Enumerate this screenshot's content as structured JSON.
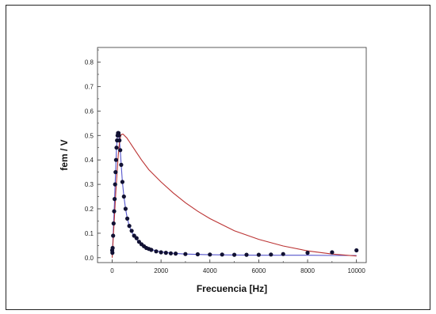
{
  "chart_data": {
    "type": "scatter",
    "title": "",
    "xlabel": "Frecuencia [Hz]",
    "ylabel": "fem / V",
    "xlim": [
      -600,
      10400
    ],
    "ylim": [
      -0.02,
      0.86
    ],
    "x_ticks": [
      0,
      2000,
      4000,
      6000,
      8000,
      10000
    ],
    "y_ticks": [
      0.0,
      0.1,
      0.2,
      0.3,
      0.4,
      0.5,
      0.6,
      0.7,
      0.8
    ],
    "x_tick_labels": [
      "0",
      "2000",
      "4000",
      "6000",
      "8000",
      "10000"
    ],
    "y_tick_labels": [
      "0.0",
      "0.1",
      "0.2",
      "0.3",
      "0.4",
      "0.5",
      "0.6",
      "0.7",
      "0.8"
    ],
    "grid": false,
    "legend": "none",
    "series": [
      {
        "kind": "points",
        "color": "#111133",
        "x": [
          0,
          10,
          20,
          40,
          60,
          80,
          100,
          120,
          140,
          160,
          180,
          200,
          220,
          240,
          260,
          280,
          300,
          330,
          370,
          420,
          480,
          550,
          620,
          700,
          800,
          900,
          1000,
          1100,
          1200,
          1300,
          1400,
          1500,
          1600,
          1800,
          2000,
          2200,
          2400,
          2600,
          3000,
          3500,
          4000,
          4500,
          5000,
          5500,
          6000,
          6500,
          7000,
          8000,
          9000,
          10000
        ],
        "y": [
          0.03,
          0.02,
          0.04,
          0.09,
          0.14,
          0.19,
          0.24,
          0.3,
          0.35,
          0.4,
          0.45,
          0.48,
          0.5,
          0.51,
          0.51,
          0.5,
          0.48,
          0.44,
          0.38,
          0.31,
          0.25,
          0.2,
          0.16,
          0.13,
          0.11,
          0.09,
          0.08,
          0.065,
          0.055,
          0.047,
          0.04,
          0.036,
          0.032,
          0.026,
          0.022,
          0.02,
          0.018,
          0.017,
          0.015,
          0.014,
          0.013,
          0.013,
          0.012,
          0.012,
          0.012,
          0.013,
          0.015,
          0.02,
          0.022,
          0.03
        ]
      },
      {
        "kind": "line",
        "color": "#5555cc",
        "x": [
          0,
          20,
          40,
          60,
          80,
          100,
          120,
          140,
          160,
          180,
          200,
          220,
          240,
          260,
          280,
          300,
          330,
          370,
          420,
          480,
          550,
          620,
          700,
          800,
          900,
          1000,
          1200,
          1400,
          1600,
          1800,
          2000,
          2500,
          3000,
          4000,
          5000,
          6000,
          7000,
          8000,
          9000,
          10000
        ],
        "y": [
          0.01,
          0.04,
          0.09,
          0.14,
          0.19,
          0.24,
          0.3,
          0.35,
          0.4,
          0.45,
          0.48,
          0.5,
          0.51,
          0.51,
          0.5,
          0.48,
          0.44,
          0.38,
          0.31,
          0.25,
          0.2,
          0.16,
          0.13,
          0.105,
          0.088,
          0.075,
          0.055,
          0.042,
          0.034,
          0.028,
          0.024,
          0.018,
          0.015,
          0.012,
          0.011,
          0.01,
          0.01,
          0.01,
          0.009,
          0.009
        ]
      },
      {
        "kind": "line",
        "color": "#bb3333",
        "x": [
          0,
          50,
          100,
          150,
          200,
          250,
          300,
          350,
          400,
          450,
          500,
          550,
          600,
          700,
          800,
          1000,
          1200,
          1500,
          2000,
          2500,
          3000,
          3500,
          4000,
          5000,
          6000,
          7000,
          8000,
          9000,
          10000
        ],
        "y": [
          0.0,
          0.09,
          0.18,
          0.27,
          0.35,
          0.42,
          0.47,
          0.5,
          0.505,
          0.505,
          0.5,
          0.495,
          0.49,
          0.475,
          0.46,
          0.43,
          0.4,
          0.36,
          0.31,
          0.265,
          0.225,
          0.19,
          0.16,
          0.11,
          0.075,
          0.048,
          0.028,
          0.015,
          0.007
        ]
      }
    ]
  }
}
